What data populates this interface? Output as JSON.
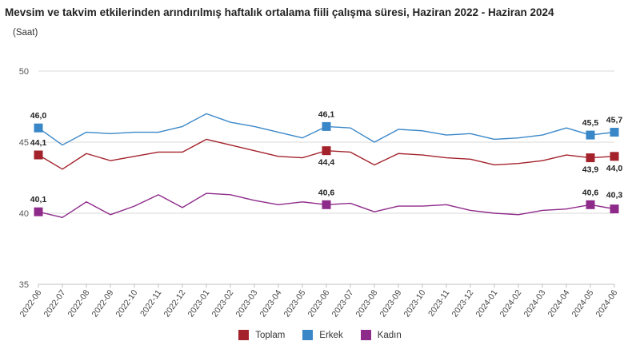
{
  "chart_data": {
    "type": "line",
    "title": "Mevsim ve takvim etkilerinden arındırılmış haftalık ortalama fiili çalışma süresi, Haziran 2022 - Haziran 2024",
    "subtitle": "(Saat)",
    "ylim": [
      35,
      50
    ],
    "yticks": [
      "35",
      "40",
      "45",
      "50"
    ],
    "grid": "horizontal",
    "legend_position": "bottom-center",
    "categories": [
      "2022-06",
      "2022-07",
      "2022-08",
      "2022-09",
      "2022-10",
      "2022-11",
      "2022-12",
      "2023-01",
      "2023-02",
      "2023-03",
      "2023-04",
      "2023-05",
      "2023-06",
      "2023-07",
      "2023-08",
      "2023-09",
      "2023-10",
      "2023-11",
      "2023-12",
      "2024-01",
      "2024-02",
      "2024-03",
      "2024-04",
      "2024-05",
      "2024-06"
    ],
    "series": [
      {
        "name": "Toplam",
        "color": "#a3222b",
        "values": [
          44.1,
          43.1,
          44.2,
          43.7,
          44.0,
          44.3,
          44.3,
          45.2,
          44.8,
          44.4,
          44.0,
          43.9,
          44.4,
          44.3,
          43.4,
          44.2,
          44.1,
          43.9,
          43.8,
          43.4,
          43.5,
          43.7,
          44.1,
          43.9,
          44.0
        ],
        "markers": [
          0,
          12,
          23,
          24
        ],
        "labels": {
          "0": "44,1",
          "12": "44,4",
          "23": "43,9",
          "24": "44,0"
        }
      },
      {
        "name": "Erkek",
        "color": "#3a87c8",
        "values": [
          46.0,
          44.8,
          45.7,
          45.6,
          45.7,
          45.7,
          46.1,
          47.0,
          46.4,
          46.1,
          45.7,
          45.3,
          46.1,
          46.0,
          45.0,
          45.9,
          45.8,
          45.5,
          45.6,
          45.2,
          45.3,
          45.5,
          46.0,
          45.5,
          45.7
        ],
        "markers": [
          0,
          12,
          23,
          24
        ],
        "labels": {
          "0": "46,0",
          "12": "46,1",
          "23": "45,5",
          "24": "45,7"
        }
      },
      {
        "name": "Kadın",
        "color": "#8e2a8a",
        "values": [
          40.1,
          39.7,
          40.8,
          39.9,
          40.5,
          41.3,
          40.4,
          41.4,
          41.3,
          40.9,
          40.6,
          40.8,
          40.6,
          40.7,
          40.1,
          40.5,
          40.5,
          40.6,
          40.2,
          40.0,
          39.9,
          40.2,
          40.3,
          40.6,
          40.3
        ],
        "markers": [
          0,
          12,
          23,
          24
        ],
        "labels": {
          "0": "40,1",
          "12": "40,6",
          "23": "40,6",
          "24": "40,3"
        }
      }
    ]
  }
}
